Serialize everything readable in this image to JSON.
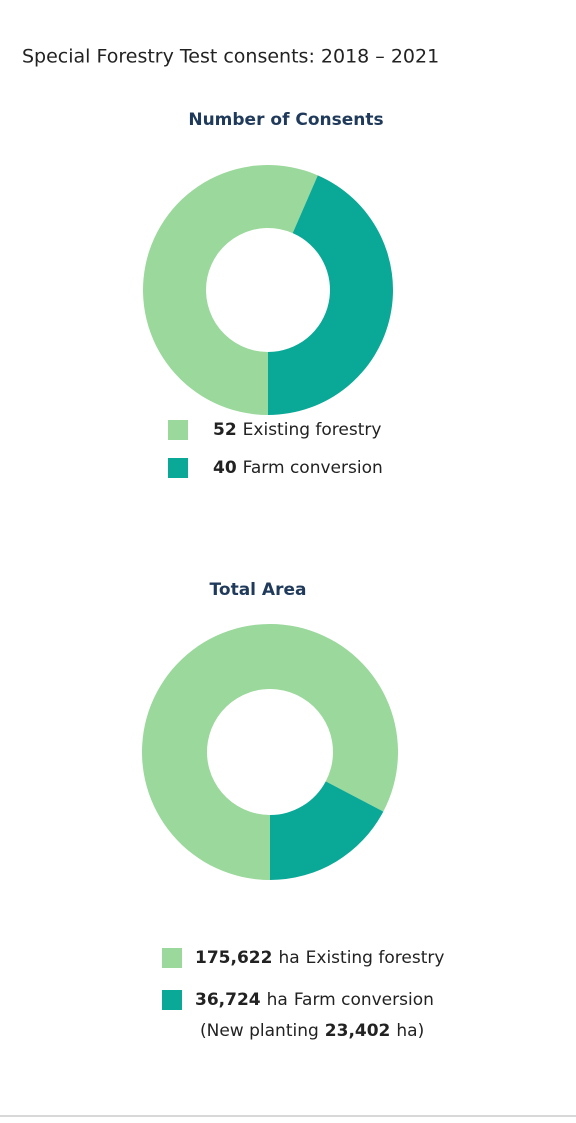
{
  "title": "Special Forestry Test consents: 2018 – 2021",
  "chart_data": [
    {
      "type": "pie",
      "title": "Number of Consents",
      "categories": [
        "Existing forestry",
        "Farm conversion"
      ],
      "values": [
        52,
        40
      ],
      "colors": [
        "#9ad89b",
        "#0aa896"
      ]
    },
    {
      "type": "pie",
      "title": "Total Area",
      "categories": [
        "Existing forestry",
        "Farm conversion"
      ],
      "values": [
        175622,
        36724
      ],
      "value_labels": [
        "175,622",
        "36,724"
      ],
      "unit": "ha",
      "colors": [
        "#9ad89b",
        "#0aa896"
      ],
      "note": {
        "text": "(New planting",
        "value": 23402,
        "value_label": "23,402",
        "unit": "ha)"
      }
    }
  ]
}
